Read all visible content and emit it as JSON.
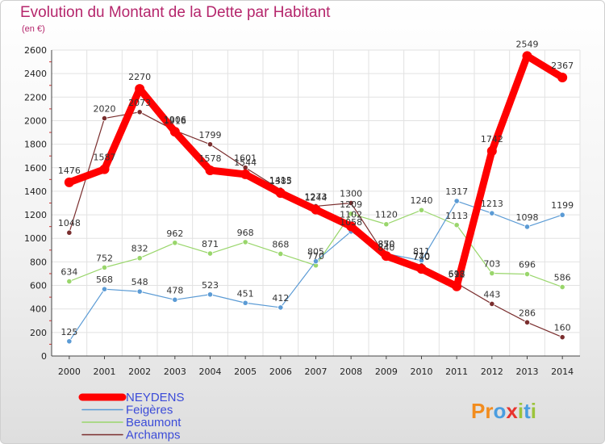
{
  "header": {
    "title": "Evolution du Montant de la Dette par Habitant",
    "subtitle": "(en €)"
  },
  "logo": {
    "letters": [
      "P",
      "r",
      "o",
      "x",
      "i",
      "t",
      "i"
    ],
    "colors": [
      "#f28c1e",
      "#f28c1e",
      "#4a9de0",
      "#e8342e",
      "#9cc43c",
      "#4a9de0",
      "#9cc43c"
    ]
  },
  "chart_data": {
    "type": "line",
    "title": "Evolution du Montant de la Dette par Habitant",
    "subtitle": "(en €)",
    "xlabel": "",
    "ylabel": "",
    "x": [
      "2000",
      "2001",
      "2002",
      "2003",
      "2004",
      "2005",
      "2006",
      "2007",
      "2008",
      "2009",
      "2010",
      "2011",
      "2012",
      "2013",
      "2014"
    ],
    "ylim": [
      0,
      2600
    ],
    "yticks": [
      0,
      200,
      400,
      600,
      800,
      1000,
      1200,
      1400,
      1600,
      1800,
      2000,
      2200,
      2400,
      2600
    ],
    "grid": true,
    "legend_position": "bottom-left",
    "series": [
      {
        "name": "NEYDENS",
        "color": "#ff0000",
        "values": [
          1476,
          1587,
          2270,
          1906,
          1578,
          1544,
          1385,
          1244,
          1102,
          850,
          740,
          592,
          1742,
          2549,
          2367
        ],
        "labels": [
          "1476",
          "1587",
          "2270",
          "1906",
          "1578",
          "1544",
          "1385",
          "1244",
          "1102",
          "850",
          "740",
          "592",
          "1742",
          "2549",
          "2367"
        ]
      },
      {
        "name": "Feigères",
        "color": "#5b9bd5",
        "values": [
          125,
          568,
          548,
          478,
          523,
          451,
          412,
          805,
          1058,
          870,
          811,
          1317,
          1213,
          1098,
          1199
        ],
        "labels": [
          "125",
          "568",
          "548",
          "478",
          "523",
          "451",
          "412",
          "805",
          "1058",
          "870",
          "811",
          "1317",
          "1213",
          "1098",
          "1199"
        ]
      },
      {
        "name": "Beaumont",
        "color": "#99d66b",
        "values": [
          634,
          752,
          832,
          962,
          871,
          968,
          868,
          770,
          1209,
          1120,
          1240,
          1113,
          703,
          696,
          586
        ],
        "labels": [
          "634",
          "752",
          "832",
          "962",
          "871",
          "968",
          "868",
          "770",
          "1209",
          "1120",
          "1240",
          "1113",
          "703",
          "696",
          "586"
        ]
      },
      {
        "name": "Archamps",
        "color": "#7a2e2e",
        "values": [
          1048,
          2020,
          2073,
          1916,
          1799,
          1601,
          1413,
          1273,
          1300,
          840,
          770,
          618,
          443,
          286,
          160
        ],
        "labels": [
          "1048",
          "2020",
          "2073",
          "1916",
          "1799",
          "1601",
          "1413",
          "1273",
          "1300",
          "840",
          "770",
          "618",
          "443",
          "286",
          "160"
        ]
      }
    ]
  }
}
